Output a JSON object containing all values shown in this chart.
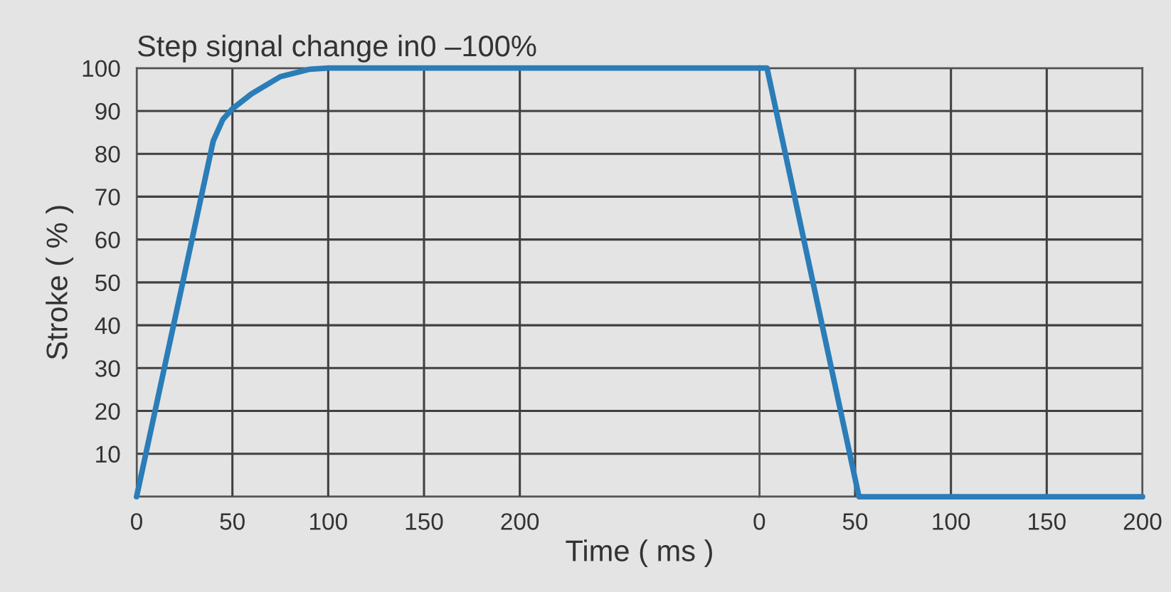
{
  "chart_data": [
    {
      "type": "line",
      "title": "Step signal change in0 –100%",
      "xlabel": "Time ( ms )",
      "ylabel": "Stroke ( % )",
      "x": [
        0,
        40,
        45,
        50,
        60,
        75,
        90,
        100,
        325
      ],
      "series": [
        {
          "color": "#2a7db8",
          "values": [
            0,
            83,
            88,
            90.5,
            94,
            98,
            99.7,
            100,
            100
          ]
        }
      ],
      "xlim": [
        0,
        325
      ],
      "xticks": [
        0,
        50,
        100,
        150,
        200
      ],
      "ylim": [
        0,
        100
      ],
      "yticks": [
        {
          "value": 0,
          "label": null
        },
        10,
        20,
        30,
        40,
        50,
        60,
        70,
        80,
        90,
        100
      ],
      "grid": true,
      "marker": "none",
      "line_style": "solid"
    },
    {
      "type": "line",
      "x": [
        0,
        4,
        52,
        200
      ],
      "series": [
        {
          "color": "#2a7db8",
          "values": [
            100,
            100,
            0,
            0
          ]
        }
      ],
      "xlim": [
        0,
        200
      ],
      "xticks": [
        0,
        50,
        100,
        150,
        200
      ],
      "ylim": [
        0,
        100
      ],
      "yticks": [
        0,
        10,
        20,
        30,
        40,
        50,
        60,
        70,
        80,
        90,
        100
      ],
      "tick_labels": "x",
      "grid": true,
      "marker": "none",
      "line_style": "solid"
    }
  ]
}
